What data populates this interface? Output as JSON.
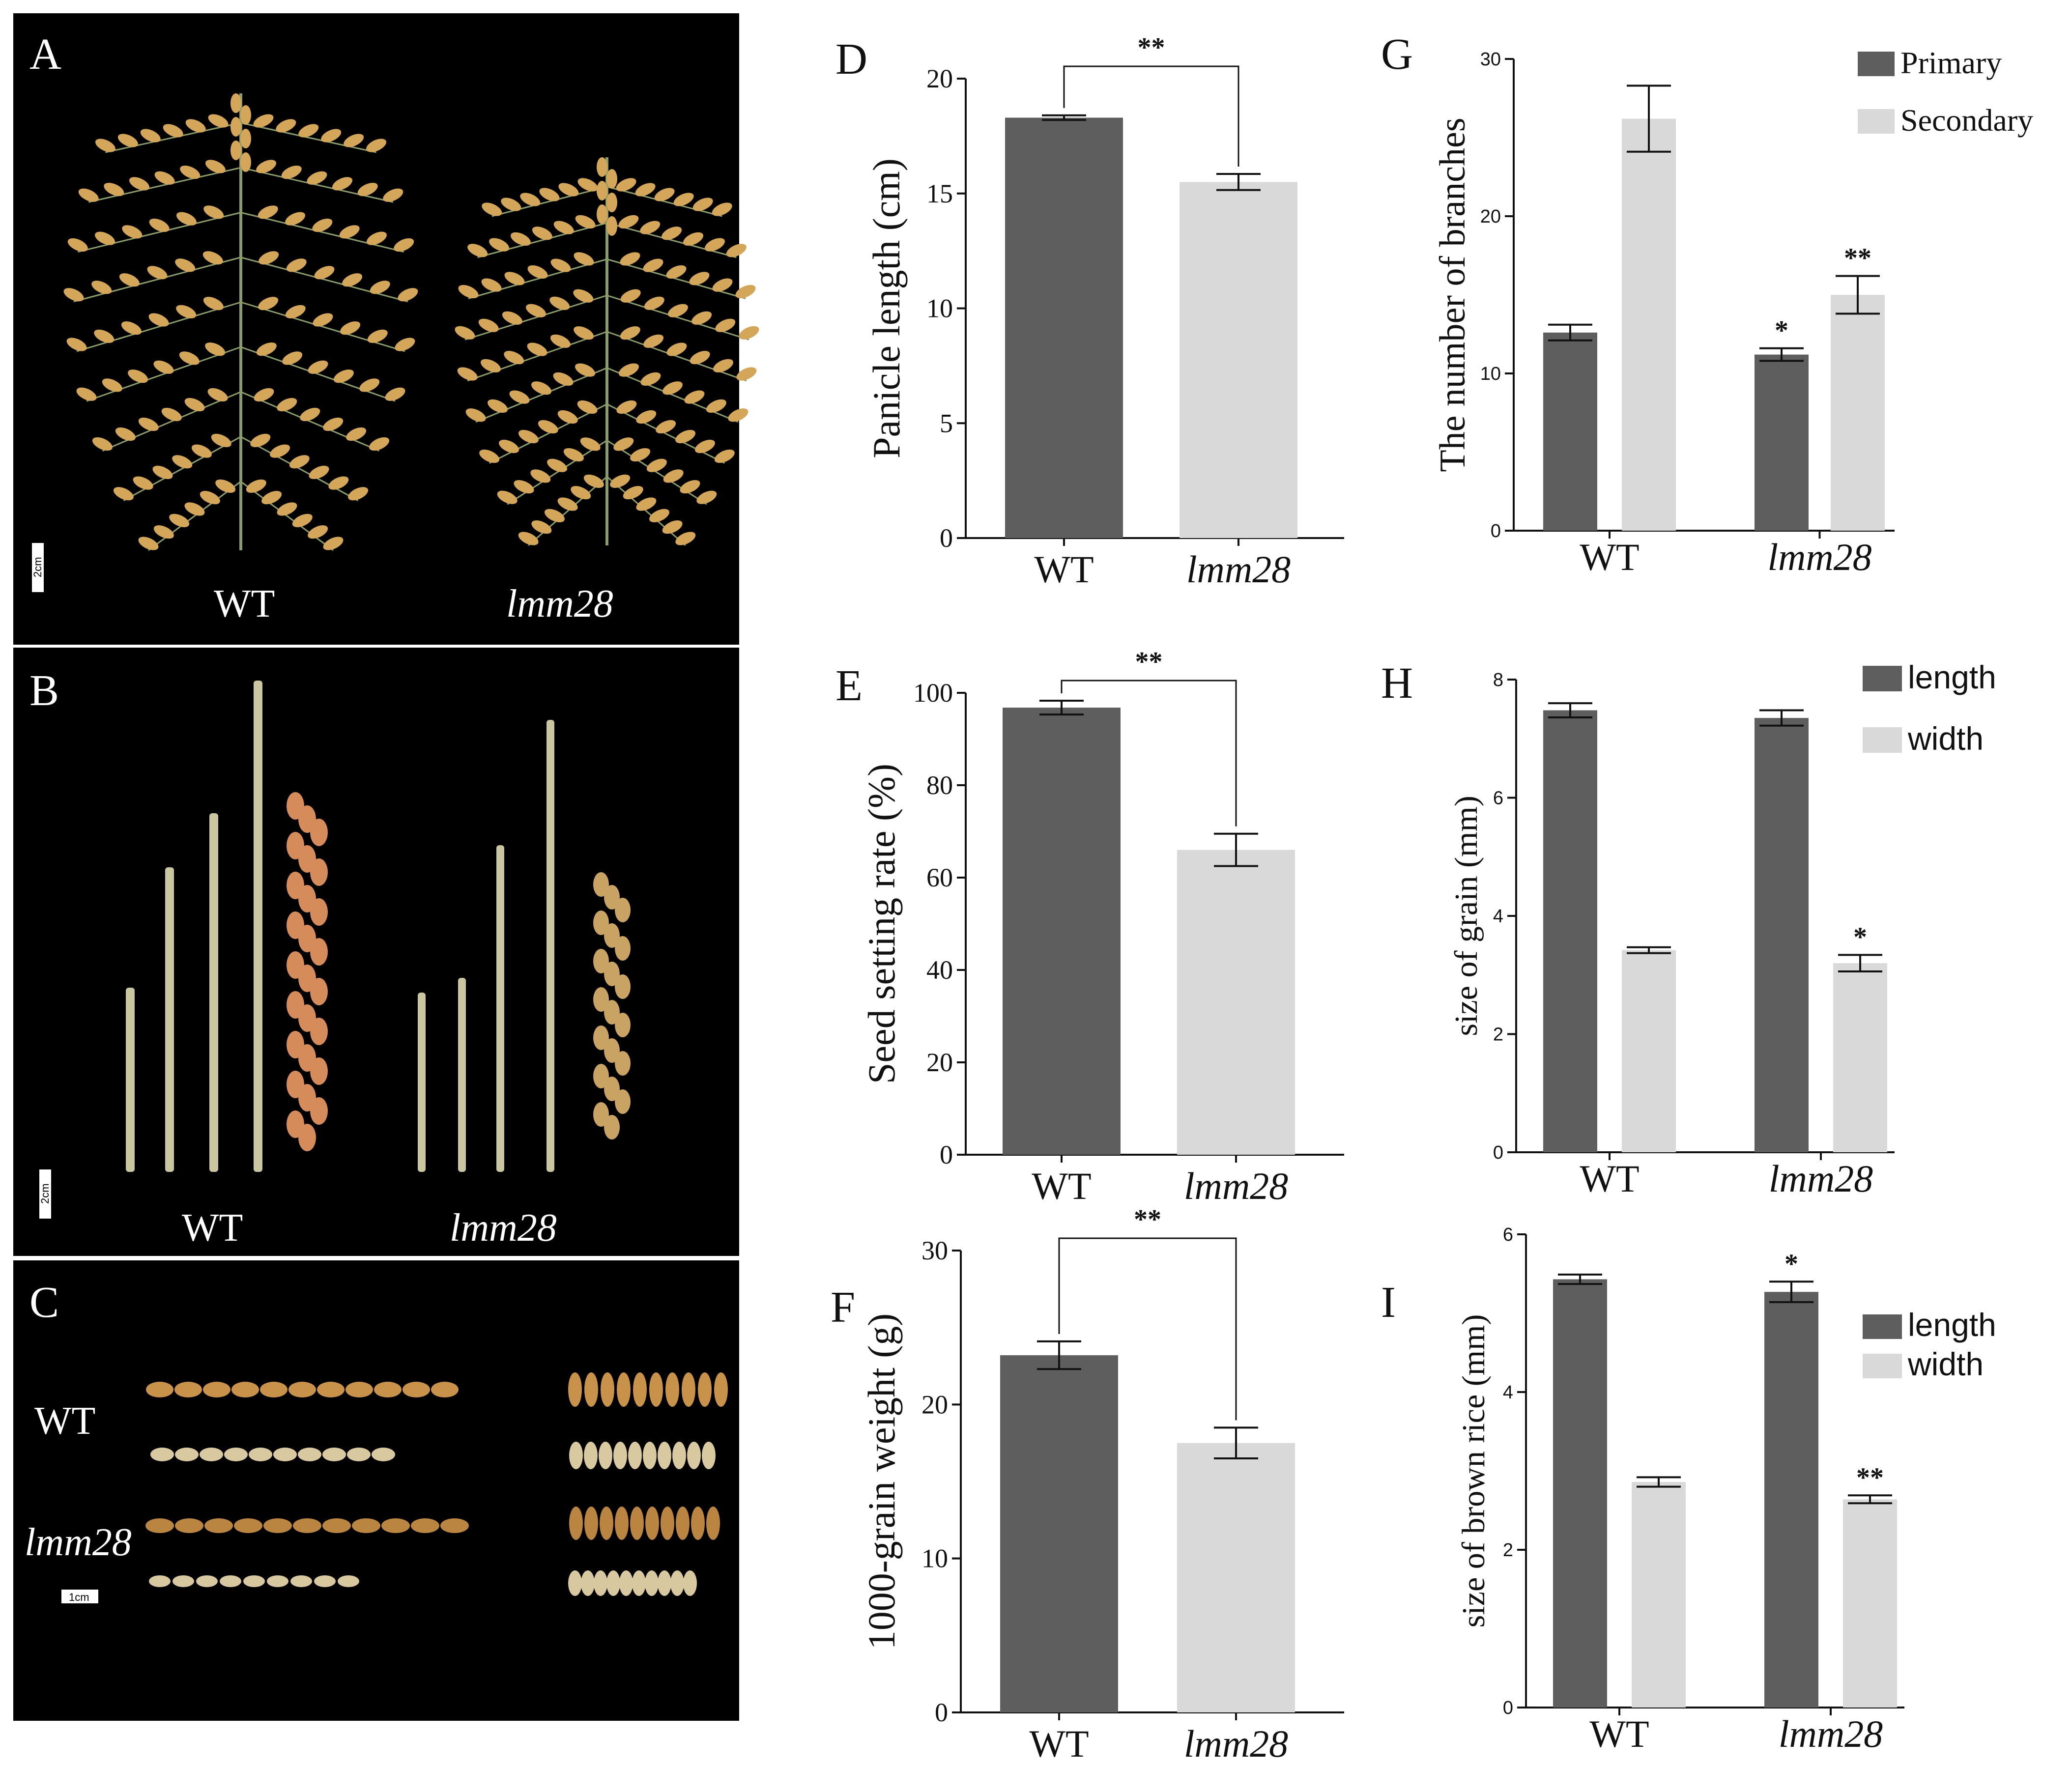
{
  "colors": {
    "dark_bar": "#5e5e5e",
    "light_bar": "#d9d9d9",
    "photo_bg": "#000000",
    "grain": "#d4a65a",
    "stem": "#c9c6a0"
  },
  "photos": [
    {
      "letter": "A",
      "labels": [
        "WT",
        "lmm28"
      ],
      "scale": "2cm"
    },
    {
      "letter": "B",
      "labels": [
        "WT",
        "lmm28"
      ],
      "scale": "2cm"
    },
    {
      "letter": "C",
      "labels": [
        "WT",
        "lmm28"
      ],
      "scale": "1cm"
    }
  ],
  "chart_data": [
    {
      "letter": "D",
      "type": "bar",
      "categories": [
        "WT",
        "lmm28"
      ],
      "values": [
        18.3,
        15.5
      ],
      "errors": [
        0.1,
        0.35
      ],
      "ylabel": "Panicle length (cm)",
      "ylim": [
        0,
        20
      ],
      "yticks": [
        0,
        5,
        10,
        15,
        20
      ],
      "significance_bracket": "**"
    },
    {
      "letter": "E",
      "type": "bar",
      "categories": [
        "WT",
        "lmm28"
      ],
      "values": [
        96.8,
        66.0
      ],
      "errors": [
        1.5,
        3.5
      ],
      "ylabel": "Seed setting rate (%)",
      "ylim": [
        0,
        100
      ],
      "yticks": [
        0,
        20,
        40,
        60,
        80,
        100
      ],
      "significance_bracket": "**"
    },
    {
      "letter": "F",
      "type": "bar",
      "categories": [
        "WT",
        "lmm28"
      ],
      "values": [
        23.2,
        17.5
      ],
      "errors": [
        0.9,
        1.0
      ],
      "ylabel": "1000-grain weight (g)",
      "ylim": [
        0,
        30
      ],
      "yticks": [
        0,
        10,
        20,
        30
      ],
      "significance_bracket": "**"
    },
    {
      "letter": "G",
      "type": "grouped_bar",
      "categories": [
        "WT",
        "lmm28"
      ],
      "series": [
        {
          "name": "Primary",
          "values": [
            12.6,
            11.2
          ],
          "errors": [
            0.5,
            0.4
          ],
          "sig": [
            "",
            "*"
          ]
        },
        {
          "name": "Secondary",
          "values": [
            26.2,
            15.0
          ],
          "errors": [
            2.1,
            1.2
          ],
          "sig": [
            "",
            "**"
          ]
        }
      ],
      "ylabel": "The number of branches",
      "ylim": [
        0,
        30
      ],
      "yticks": [
        0,
        10,
        20,
        30
      ]
    },
    {
      "letter": "H",
      "type": "grouped_bar",
      "categories": [
        "WT",
        "lmm28"
      ],
      "series": [
        {
          "name": "length",
          "values": [
            7.48,
            7.35
          ],
          "errors": [
            0.12,
            0.13
          ],
          "sig": [
            "",
            ""
          ]
        },
        {
          "name": "width",
          "values": [
            3.42,
            3.2
          ],
          "errors": [
            0.05,
            0.14
          ],
          "sig": [
            "",
            "*"
          ]
        }
      ],
      "ylabel": "size of grain (mm)",
      "ylim": [
        0,
        8
      ],
      "yticks": [
        0,
        2,
        4,
        6,
        8
      ]
    },
    {
      "letter": "I",
      "type": "grouped_bar",
      "categories": [
        "WT",
        "lmm28"
      ],
      "series": [
        {
          "name": "length",
          "values": [
            5.43,
            5.27
          ],
          "errors": [
            0.06,
            0.13
          ],
          "sig": [
            "",
            "*"
          ]
        },
        {
          "name": "width",
          "values": [
            2.86,
            2.64
          ],
          "errors": [
            0.06,
            0.05
          ],
          "sig": [
            "",
            "**"
          ]
        }
      ],
      "ylabel": "size of brown rice (mm)",
      "ylim": [
        0,
        6
      ],
      "yticks": [
        0,
        2,
        4,
        6
      ]
    }
  ]
}
